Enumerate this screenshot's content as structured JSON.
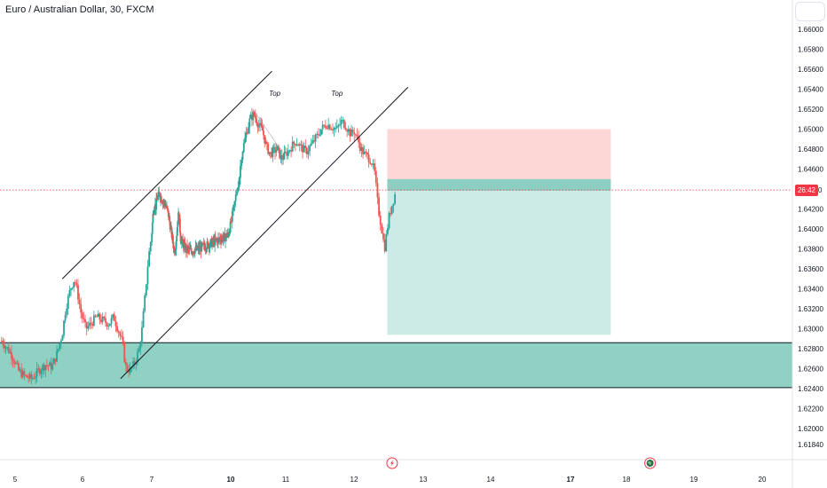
{
  "chart_data": {
    "type": "candlestick",
    "title": "Euro / Australian Dollar, 30, FXCM",
    "symbol": "Euro / Australian Dollar",
    "interval": "30",
    "exchange": "FXCM",
    "ylim": [
      1.6178,
      1.6618
    ],
    "y_ticks": [
      "1.66000",
      "1.65800",
      "1.65600",
      "1.65400",
      "1.65200",
      "1.65000",
      "1.64800",
      "1.64600",
      "1.64200",
      "1.64000",
      "1.63800",
      "1.63600",
      "1.63400",
      "1.63200",
      "1.63000",
      "1.62800",
      "1.62600",
      "1.62400",
      "1.62200",
      "1.62000",
      "1.61840"
    ],
    "x_ticks": [
      {
        "label": "5",
        "day": 5,
        "bold": false
      },
      {
        "label": "6",
        "day": 6,
        "bold": false
      },
      {
        "label": "7",
        "day": 7,
        "bold": false
      },
      {
        "label": "10",
        "day": 10,
        "bold": true
      },
      {
        "label": "11",
        "day": 11,
        "bold": false
      },
      {
        "label": "12",
        "day": 12,
        "bold": false
      },
      {
        "label": "13",
        "day": 13,
        "bold": false
      },
      {
        "label": "14",
        "day": 14,
        "bold": false
      },
      {
        "label": "17",
        "day": 17,
        "bold": true
      },
      {
        "label": "18",
        "day": 18,
        "bold": false
      },
      {
        "label": "19",
        "day": 19,
        "bold": false
      },
      {
        "label": "20",
        "day": 20,
        "bold": false
      }
    ],
    "current_price": 1.6439,
    "countdown": "26:42",
    "price_tag_tail": "0",
    "price_path": [
      [
        4.8,
        1.6288
      ],
      [
        4.95,
        1.6274
      ],
      [
        5.05,
        1.6258
      ],
      [
        5.15,
        1.6252
      ],
      [
        5.25,
        1.625
      ],
      [
        5.35,
        1.6258
      ],
      [
        5.45,
        1.6264
      ],
      [
        5.55,
        1.6262
      ],
      [
        5.62,
        1.6275
      ],
      [
        5.7,
        1.6295
      ],
      [
        5.75,
        1.632
      ],
      [
        5.82,
        1.634
      ],
      [
        5.88,
        1.635
      ],
      [
        5.92,
        1.6338
      ],
      [
        5.98,
        1.6315
      ],
      [
        6.05,
        1.63
      ],
      [
        6.12,
        1.6305
      ],
      [
        6.2,
        1.6312
      ],
      [
        6.3,
        1.6308
      ],
      [
        6.38,
        1.6305
      ],
      [
        6.45,
        1.6312
      ],
      [
        6.52,
        1.6298
      ],
      [
        6.58,
        1.6285
      ],
      [
        6.62,
        1.6262
      ],
      [
        6.68,
        1.6258
      ],
      [
        6.75,
        1.6265
      ],
      [
        6.82,
        1.628
      ],
      [
        6.86,
        1.63
      ],
      [
        6.9,
        1.633
      ],
      [
        6.95,
        1.637
      ],
      [
        7.0,
        1.6395
      ],
      [
        7.05,
        1.6415
      ],
      [
        7.1,
        1.6425
      ],
      [
        7.15,
        1.6422
      ],
      [
        7.2,
        1.643
      ],
      [
        7.28,
        1.6435
      ],
      [
        7.35,
        1.6432
      ],
      [
        7.42,
        1.6428
      ],
      [
        7.5,
        1.6425
      ],
      [
        7.58,
        1.642
      ],
      [
        7.65,
        1.6412
      ],
      [
        7.72,
        1.64
      ],
      [
        7.8,
        1.6388
      ],
      [
        7.85,
        1.6378
      ],
      [
        7.9,
        1.6382
      ],
      [
        7.96,
        1.6398
      ],
      [
        8.0,
        1.6415
      ],
      [
        8.05,
        1.6408
      ],
      [
        8.1,
        1.639
      ],
      [
        8.18,
        1.6385
      ],
      [
        8.3,
        1.638
      ],
      [
        8.5,
        1.6378
      ],
      [
        8.8,
        1.638
      ],
      [
        9.2,
        1.6385
      ],
      [
        9.6,
        1.639
      ],
      [
        9.8,
        1.6392
      ],
      [
        9.92,
        1.6395
      ],
      [
        10.0,
        1.6405
      ],
      [
        10.05,
        1.642
      ],
      [
        10.1,
        1.6435
      ],
      [
        10.15,
        1.645
      ],
      [
        10.2,
        1.6475
      ],
      [
        10.28,
        1.6495
      ],
      [
        10.35,
        1.651
      ],
      [
        10.42,
        1.6515
      ],
      [
        10.5,
        1.6505
      ],
      [
        10.58,
        1.6498
      ],
      [
        10.65,
        1.6482
      ],
      [
        10.72,
        1.6475
      ],
      [
        10.78,
        1.6478
      ],
      [
        10.85,
        1.648
      ],
      [
        10.92,
        1.647
      ],
      [
        11.0,
        1.6475
      ],
      [
        11.08,
        1.6482
      ],
      [
        11.15,
        1.6488
      ],
      [
        11.22,
        1.6482
      ],
      [
        11.3,
        1.6477
      ],
      [
        11.38,
        1.6485
      ],
      [
        11.45,
        1.6492
      ],
      [
        11.52,
        1.65
      ],
      [
        11.6,
        1.6505
      ],
      [
        11.68,
        1.6502
      ],
      [
        11.75,
        1.65
      ],
      [
        11.82,
        1.6508
      ],
      [
        11.88,
        1.6503
      ],
      [
        11.95,
        1.6495
      ],
      [
        12.0,
        1.6498
      ],
      [
        12.05,
        1.649
      ],
      [
        12.1,
        1.648
      ],
      [
        12.15,
        1.6475
      ],
      [
        12.2,
        1.6472
      ],
      [
        12.25,
        1.6468
      ],
      [
        12.3,
        1.6455
      ],
      [
        12.35,
        1.642
      ],
      [
        12.4,
        1.64
      ],
      [
        12.44,
        1.638
      ],
      [
        12.47,
        1.6395
      ],
      [
        12.5,
        1.641
      ],
      [
        12.54,
        1.6422
      ],
      [
        12.58,
        1.6432
      ],
      [
        12.61,
        1.6439
      ]
    ],
    "annotations": [
      {
        "text": "Top",
        "day": 10.8,
        "price": 1.6536
      },
      {
        "text": "Top",
        "day": 11.75,
        "price": 1.6536
      }
    ],
    "channel_upper": {
      "from": [
        5.7,
        1.635
      ],
      "to": [
        10.75,
        1.6558
      ]
    },
    "channel_lower": {
      "from": [
        6.55,
        1.625
      ],
      "to": [
        12.78,
        1.6542
      ]
    },
    "support_zone": {
      "top": 1.6286,
      "bottom": 1.6241
    },
    "position": {
      "day_start": 12.48,
      "day_end": 17.72,
      "entry": 1.6449,
      "stop": 1.65,
      "target": 1.6294
    },
    "colors": {
      "up": "#26a69a",
      "down": "#ef5350",
      "zone_fill": "#8fd2c4",
      "target_fill": "#cceae6",
      "stop_fill": "#fcd7d5",
      "entry_bar": "#8ccec2",
      "line": "#131722",
      "price_line": "#f23645"
    },
    "bottom_icons": [
      {
        "name": "flash-icon",
        "day": 12.55
      },
      {
        "name": "earth-icon",
        "day": 18.35
      }
    ]
  }
}
